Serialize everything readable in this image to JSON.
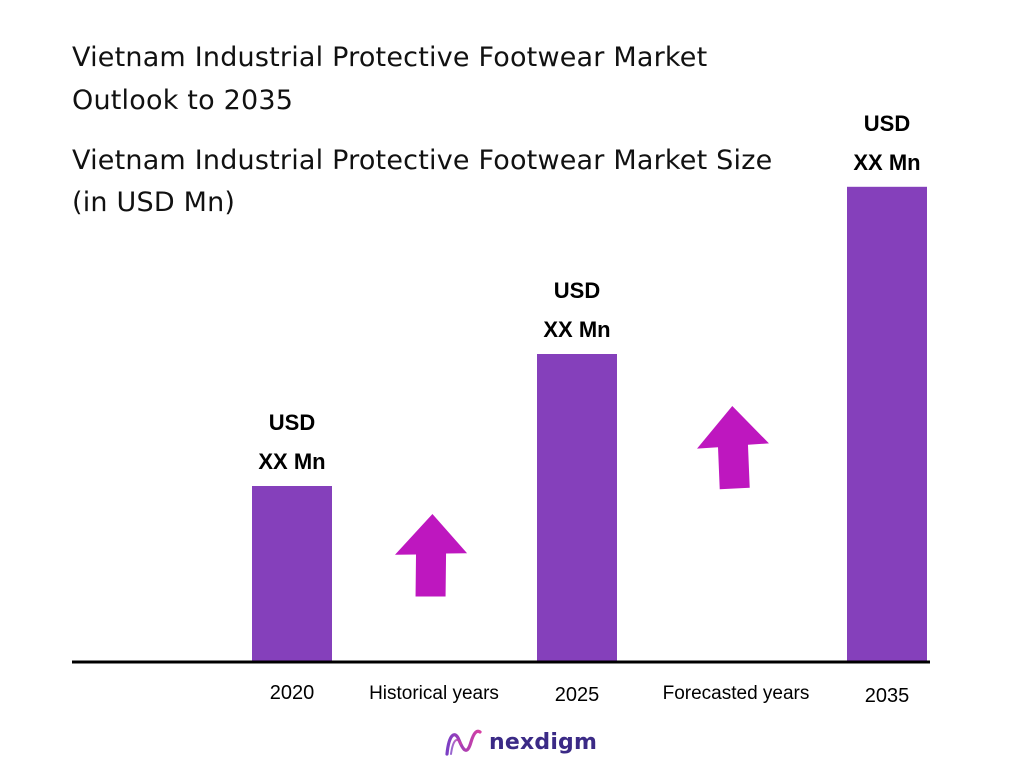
{
  "header": {
    "title": "Vietnam Industrial Protective Footwear Market Outlook to 2035",
    "subtitle": "Vietnam Industrial Protective Footwear Market Size (in USD Mn)"
  },
  "brand": {
    "name": "nexdigm",
    "icon": "nexdigm-logo-icon"
  },
  "colors": {
    "bar": "#8540BB",
    "arrow": "#BE17BF",
    "axis": "#000000",
    "brand": "#3b2a86"
  },
  "chart_data": {
    "type": "bar",
    "title": "Vietnam Industrial Protective Footwear Market Size (in USD Mn)",
    "categories": [
      "2020",
      "2025",
      "2035"
    ],
    "series": [
      {
        "values": [
          1.0,
          1.75,
          2.7
        ]
      }
    ],
    "data_labels": [
      [
        "USD",
        "XX Mn"
      ],
      [
        "USD",
        "XX Mn"
      ],
      [
        "USD",
        "XX Mn"
      ]
    ],
    "period_labels": [
      "Historical years",
      "Forecasted years"
    ],
    "ylim": [
      0,
      3
    ],
    "grid": false,
    "legend": "none"
  }
}
